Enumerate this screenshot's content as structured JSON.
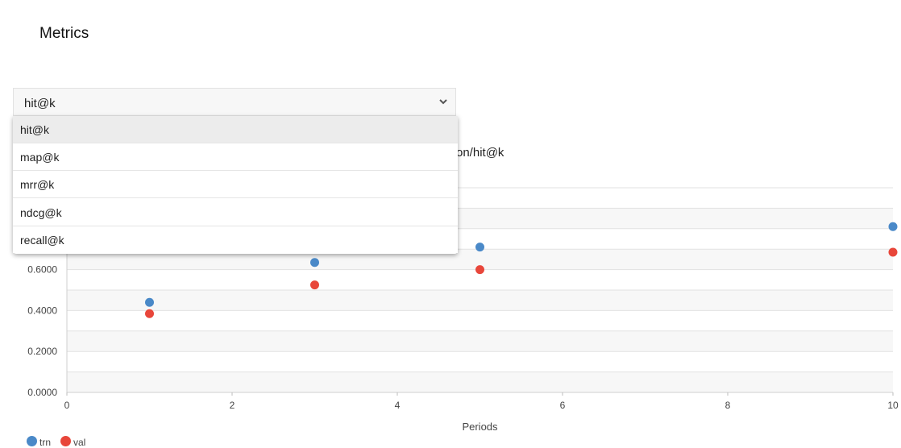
{
  "page": {
    "title": "Metrics"
  },
  "select": {
    "value": "hit@k",
    "options": [
      "hit@k",
      "map@k",
      "mrr@k",
      "ndcg@k",
      "recall@k"
    ],
    "selected_index": 0
  },
  "chart_title_fragment": "on/hit@k",
  "colors": {
    "trn": "#4a89c8",
    "val": "#e8463a",
    "band": "#f7f7f7",
    "grid": "#e2e2e2"
  },
  "chart_data": {
    "type": "scatter",
    "xlabel": "Periods",
    "ylabel": "",
    "x_ticks": [
      "0",
      "2",
      "4",
      "6",
      "8",
      "10"
    ],
    "y_ticks": [
      "0.0000",
      "0.2000",
      "0.4000",
      "0.6000"
    ],
    "xlim": [
      0,
      10
    ],
    "ylim": [
      0,
      1.0
    ],
    "grid": true,
    "legend_position": "bottom-left",
    "series": [
      {
        "name": "trn",
        "x": [
          1,
          3,
          5,
          10
        ],
        "y": [
          0.44,
          0.635,
          0.71,
          0.81
        ]
      },
      {
        "name": "val",
        "x": [
          1,
          3,
          5,
          10
        ],
        "y": [
          0.385,
          0.525,
          0.6,
          0.685
        ]
      }
    ]
  }
}
